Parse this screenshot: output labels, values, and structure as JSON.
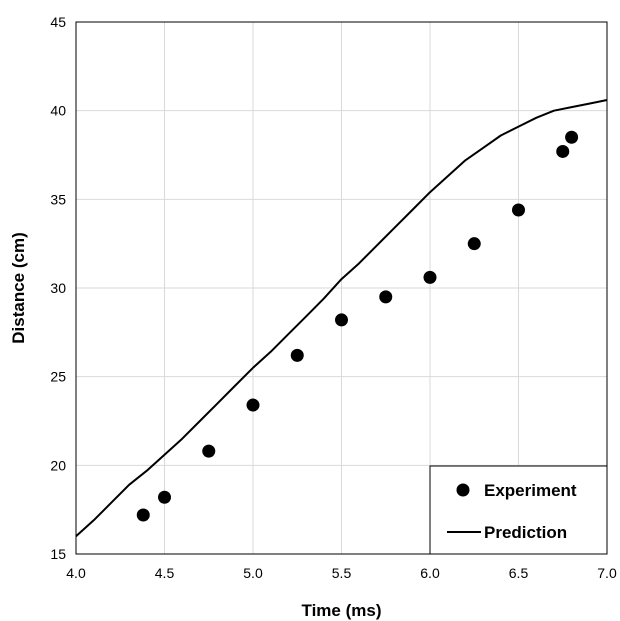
{
  "chart_data": {
    "type": "scatter",
    "xlabel": "Time (ms)",
    "ylabel": "Distance (cm)",
    "xlim": [
      4.0,
      7.0
    ],
    "ylim": [
      15,
      45
    ],
    "x_ticks": [
      "4.0",
      "4.5",
      "5.0",
      "5.5",
      "6.0",
      "6.5",
      "7.0"
    ],
    "y_ticks": [
      "15",
      "20",
      "25",
      "30",
      "35",
      "40",
      "45"
    ],
    "grid": true,
    "legend_position": "bottom-right",
    "series": [
      {
        "name": "Experiment",
        "kind": "scatter",
        "color": "#000000",
        "points": [
          {
            "x": 4.38,
            "y": 17.2
          },
          {
            "x": 4.5,
            "y": 18.2
          },
          {
            "x": 4.75,
            "y": 20.8
          },
          {
            "x": 5.0,
            "y": 23.4
          },
          {
            "x": 5.25,
            "y": 26.2
          },
          {
            "x": 5.5,
            "y": 28.2
          },
          {
            "x": 5.75,
            "y": 29.5
          },
          {
            "x": 6.0,
            "y": 30.6
          },
          {
            "x": 6.25,
            "y": 32.5
          },
          {
            "x": 6.5,
            "y": 34.4
          },
          {
            "x": 6.75,
            "y": 37.7
          },
          {
            "x": 6.8,
            "y": 38.5
          }
        ]
      },
      {
        "name": "Prediction",
        "kind": "line",
        "color": "#000000",
        "points": [
          {
            "x": 4.0,
            "y": 16.0
          },
          {
            "x": 4.1,
            "y": 16.9
          },
          {
            "x": 4.2,
            "y": 17.9
          },
          {
            "x": 4.3,
            "y": 18.9
          },
          {
            "x": 4.4,
            "y": 19.7
          },
          {
            "x": 4.5,
            "y": 20.6
          },
          {
            "x": 4.6,
            "y": 21.5
          },
          {
            "x": 4.7,
            "y": 22.5
          },
          {
            "x": 4.8,
            "y": 23.5
          },
          {
            "x": 4.9,
            "y": 24.5
          },
          {
            "x": 5.0,
            "y": 25.5
          },
          {
            "x": 5.1,
            "y": 26.4
          },
          {
            "x": 5.2,
            "y": 27.4
          },
          {
            "x": 5.3,
            "y": 28.4
          },
          {
            "x": 5.4,
            "y": 29.4
          },
          {
            "x": 5.5,
            "y": 30.5
          },
          {
            "x": 5.6,
            "y": 31.4
          },
          {
            "x": 5.7,
            "y": 32.4
          },
          {
            "x": 5.8,
            "y": 33.4
          },
          {
            "x": 5.9,
            "y": 34.4
          },
          {
            "x": 6.0,
            "y": 35.4
          },
          {
            "x": 6.1,
            "y": 36.3
          },
          {
            "x": 6.2,
            "y": 37.2
          },
          {
            "x": 6.3,
            "y": 37.9
          },
          {
            "x": 6.4,
            "y": 38.6
          },
          {
            "x": 6.5,
            "y": 39.1
          },
          {
            "x": 6.6,
            "y": 39.6
          },
          {
            "x": 6.7,
            "y": 40.0
          },
          {
            "x": 6.8,
            "y": 40.2
          },
          {
            "x": 6.9,
            "y": 40.4
          },
          {
            "x": 7.0,
            "y": 40.6
          }
        ]
      }
    ]
  }
}
